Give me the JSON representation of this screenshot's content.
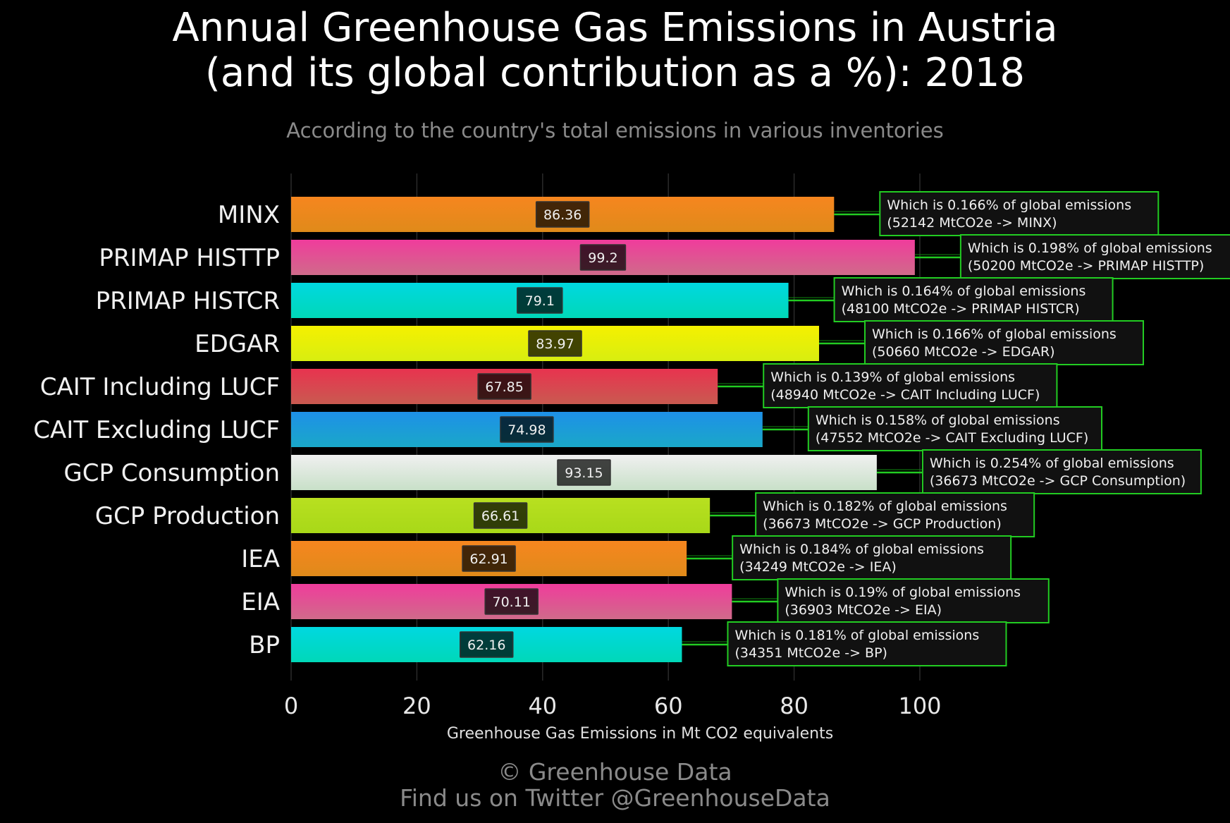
{
  "title_line1": "Annual Greenhouse Gas Emissions in Austria",
  "title_line2": "(and its global contribution as a %): 2018",
  "subtitle": "According to the country's total emissions in various inventories",
  "footer_line1": "© Greenhouse Data",
  "footer_line2": "Find us on Twitter @GreenhouseData",
  "chart_data": {
    "type": "bar",
    "orientation": "horizontal",
    "xlabel": "Greenhouse Gas Emissions in Mt CO2 equivalents",
    "xlim": [
      0,
      115
    ],
    "xticks": [
      0,
      20,
      40,
      60,
      80,
      100
    ],
    "grid": "vertical",
    "bars": [
      {
        "label": "MINX",
        "value": 86.36,
        "value_label": "86.36",
        "color_top": "#f6861f",
        "color_bottom": "#e08a1a",
        "annotation1": "Which is 0.166% of global emissions",
        "annotation2": "(52142 MtCO2e -> MINX)"
      },
      {
        "label": "PRIMAP HISTTP",
        "value": 99.2,
        "value_label": "99.2",
        "color_top": "#f03c9c",
        "color_bottom": "#d06a8a",
        "annotation1": "Which is 0.198% of global emissions",
        "annotation2": "(50200 MtCO2e -> PRIMAP HISTTP)"
      },
      {
        "label": "PRIMAP HISTCR",
        "value": 79.1,
        "value_label": "79.1",
        "color_top": "#00d8e0",
        "color_bottom": "#00d8b8",
        "annotation1": "Which is 0.164% of global emissions",
        "annotation2": "(48100 MtCO2e -> PRIMAP HISTCR)"
      },
      {
        "label": "EDGAR",
        "value": 83.97,
        "value_label": "83.97",
        "color_top": "#f5f000",
        "color_bottom": "#d8ee10",
        "annotation1": "Which is 0.166% of global emissions",
        "annotation2": "(50660 MtCO2e -> EDGAR)"
      },
      {
        "label": "CAIT Including LUCF",
        "value": 67.85,
        "value_label": "67.85",
        "color_top": "#e8334f",
        "color_bottom": "#c95a50",
        "annotation1": "Which is 0.139% of global emissions",
        "annotation2": "(48940 MtCO2e -> CAIT Including LUCF)"
      },
      {
        "label": "CAIT Excluding LUCF",
        "value": 74.98,
        "value_label": "74.98",
        "color_top": "#1e90e8",
        "color_bottom": "#1aa8c8",
        "annotation1": "Which is 0.158% of global emissions",
        "annotation2": "(47552 MtCO2e -> CAIT Excluding LUCF)"
      },
      {
        "label": "GCP Consumption",
        "value": 93.15,
        "value_label": "93.15",
        "color_top": "#f0f0f0",
        "color_bottom": "#c8e0c8",
        "annotation1": "Which is 0.254% of global emissions",
        "annotation2": "(36673 MtCO2e -> GCP Consumption)"
      },
      {
        "label": "GCP Production",
        "value": 66.61,
        "value_label": "66.61",
        "color_top": "#b8e020",
        "color_bottom": "#a8d818",
        "annotation1": "Which is 0.182% of global emissions",
        "annotation2": "(36673 MtCO2e -> GCP Production)"
      },
      {
        "label": "IEA",
        "value": 62.91,
        "value_label": "62.91",
        "color_top": "#f6861f",
        "color_bottom": "#e08a1a",
        "annotation1": "Which is 0.184% of global emissions",
        "annotation2": "(34249 MtCO2e -> IEA)"
      },
      {
        "label": "EIA",
        "value": 70.11,
        "value_label": "70.11",
        "color_top": "#f03c9c",
        "color_bottom": "#d06a8a",
        "annotation1": "Which is 0.19% of global emissions",
        "annotation2": "(36903 MtCO2e -> EIA)"
      },
      {
        "label": "BP",
        "value": 62.16,
        "value_label": "62.16",
        "color_top": "#00d8e0",
        "color_bottom": "#00d8b8",
        "annotation1": "Which is 0.181% of global emissions",
        "annotation2": "(34351 MtCO2e -> BP)"
      }
    ]
  }
}
